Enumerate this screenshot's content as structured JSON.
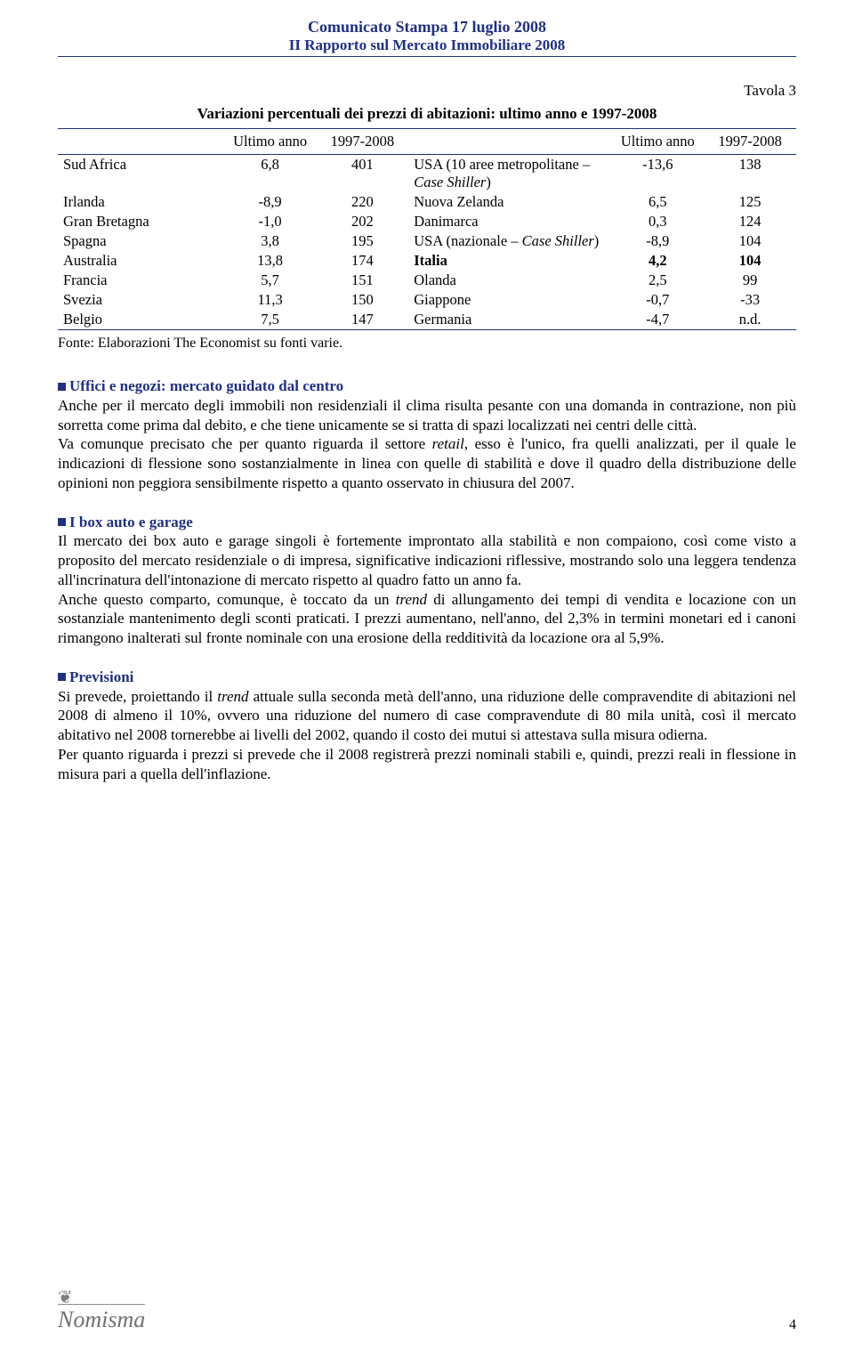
{
  "header": {
    "line1": "Comunicato Stampa 17 luglio 2008",
    "line2": "II Rapporto sul Mercato Immobiliare 2008"
  },
  "table": {
    "label": "Tavola 3",
    "title": "Variazioni percentuali dei prezzi di abitazioni: ultimo anno e 1997-2008",
    "head": {
      "c1": "",
      "c2": "Ultimo anno",
      "c3": "1997-2008",
      "c4": "",
      "c5": "Ultimo anno",
      "c6": "1997-2008"
    },
    "rows": [
      {
        "a": "Sud Africa",
        "b": "6,8",
        "c": "401",
        "d": "USA (10 aree metropolitane – ",
        "d_em": "Case Shiller",
        "d_suf": ")",
        "e": "-13,6",
        "f": "138",
        "bold": false
      },
      {
        "a": "Irlanda",
        "b": "-8,9",
        "c": "220",
        "d": "Nuova Zelanda",
        "e": "6,5",
        "f": "125",
        "bold": false
      },
      {
        "a": "Gran Bretagna",
        "b": "-1,0",
        "c": "202",
        "d": "Danimarca",
        "e": "0,3",
        "f": "124",
        "bold": false
      },
      {
        "a": "Spagna",
        "b": "3,8",
        "c": "195",
        "d": "USA (nazionale – ",
        "d_em": "Case Shiller",
        "d_suf": ")",
        "e": "-8,9",
        "f": "104",
        "bold": false
      },
      {
        "a": "Australia",
        "b": "13,8",
        "c": "174",
        "d": "Italia",
        "e": "4,2",
        "f": "104",
        "bold": true
      },
      {
        "a": "Francia",
        "b": "5,7",
        "c": "151",
        "d": "Olanda",
        "e": "2,5",
        "f": "99",
        "bold": false
      },
      {
        "a": "Svezia",
        "b": "11,3",
        "c": "150",
        "d": "Giappone",
        "e": "-0,7",
        "f": "-33",
        "bold": false
      },
      {
        "a": "Belgio",
        "b": "7,5",
        "c": "147",
        "d": "Germania",
        "e": "-4,7",
        "f": "n.d.",
        "bold": false
      }
    ],
    "source": "Fonte: Elaborazioni The Economist su fonti varie."
  },
  "sections": [
    {
      "title": "Uffici e negozi: mercato guidato dal centro",
      "paras": [
        "Anche per il mercato degli immobili non residenziali il clima risulta pesante con una domanda in contrazione, non più sorretta come prima dal debito, e che tiene unicamente se si tratta di spazi localizzati nei centri delle città.",
        "Va comunque precisato che per quanto riguarda il settore <span class=\"italic\">retail</span>, esso è l'unico, fra quelli analizzati, per il quale le indicazioni di flessione sono sostanzialmente in linea con quelle di stabilità e dove il quadro della distribuzione delle opinioni non peggiora sensibilmente rispetto a quanto osservato in chiusura del 2007."
      ]
    },
    {
      "title": "I box auto e garage",
      "paras": [
        "Il mercato dei box auto e garage singoli è fortemente improntato alla stabilità e non compaiono, così come visto a proposito del mercato residenziale o di impresa, significative indicazioni riflessive, mostrando solo una leggera tendenza all'incrinatura dell'intonazione di mercato rispetto al quadro fatto un anno fa.",
        "Anche questo comparto, comunque, è toccato da un <span class=\"italic\">trend</span> di allungamento dei tempi di vendita e locazione con un sostanziale mantenimento degli sconti praticati. I prezzi aumentano, nell'anno, del 2,3% in termini monetari ed i canoni rimangono inalterati sul fronte nominale con una erosione della redditività da locazione ora al 5,9%."
      ]
    },
    {
      "title": "Previsioni",
      "paras": [
        "Si prevede, proiettando il <span class=\"italic\">trend</span> attuale sulla seconda metà dell'anno, una riduzione delle compravendite di abitazioni nel 2008 di almeno il 10%, ovvero una riduzione del numero di case compravendute di 80 mila unità, così il mercato abitativo nel 2008 tornerebbe ai livelli del 2002, quando il costo dei mutui si attestava sulla misura odierna.",
        "Per quanto riguarda i prezzi si prevede che il 2008 registrerà prezzi nominali stabili e, quindi, prezzi reali in flessione in misura pari a quella dell'inflazione."
      ]
    }
  ],
  "footer": {
    "logo_text": "Nomisma",
    "page": "4"
  }
}
